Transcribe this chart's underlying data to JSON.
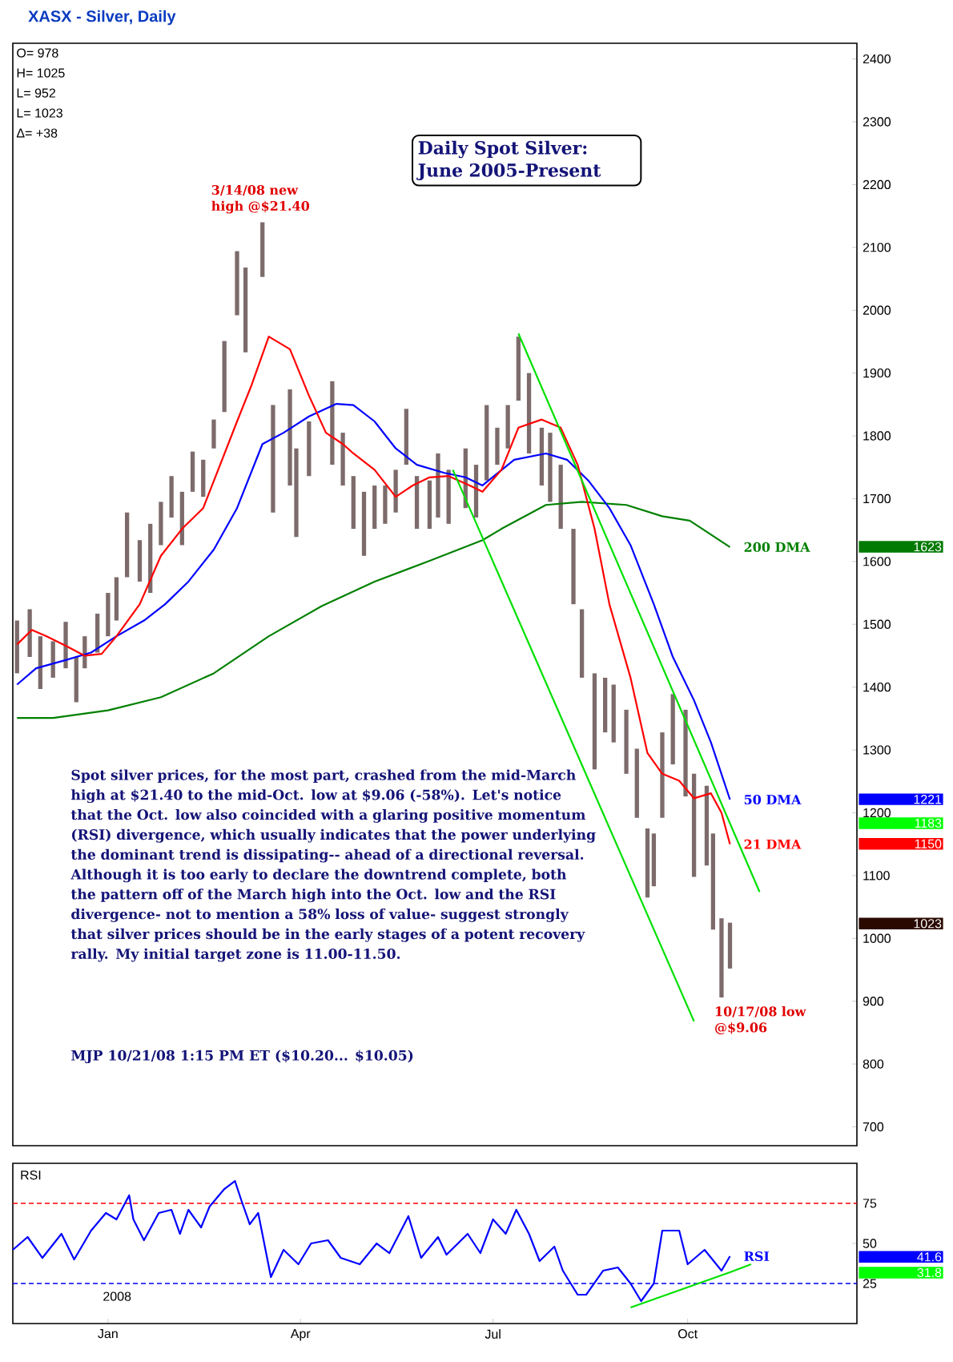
{
  "chart_data": [
    {
      "type": "bar",
      "title": "XASX - Silver, Daily",
      "subtitle": "Daily Spot Silver: June 2005-Present",
      "xlim": [
        "2007-11-17",
        "2008-12-20"
      ],
      "ylim": [
        670,
        2425
      ],
      "tick_labels": "y",
      "yticks": [
        700,
        800,
        900,
        1000,
        1100,
        1200,
        1300,
        1400,
        1500,
        1600,
        1700,
        1800,
        1900,
        2000,
        2100,
        2200,
        2300,
        2400
      ],
      "annotations": [
        "O=   978",
        "H=  1025",
        "L=   952",
        "L=  1023",
        "Δ=   +38",
        "Spot silver prices, for the most part, crashed from the mid-March high at $21.40 to the mid-Oct. low at $9.06 (-58%). Let's notice that the Oct. low also coincided with a glaring positive momentum (RSI) divergence, which usually indicates that the power underlying the dominant trend is dissipating-- ahead of a directional reversal. Although it is too early to declare the downtrend complete, both the pattern off of the March high into the Oct. low and the RSI divergence- not to mention a 58% loss of value- suggest strongly that silver prices should be in the early stages of a potent recovery rally. My initial target zone is 11.00-11.50.",
        "MJP  10/21/08 1:15 PM ET ($10.20... $10.05)",
        {
          "text": "3/14/08 new high @$21.40",
          "x": "2008-03-14",
          "y": 2140
        },
        {
          "text": "10/17/08 low @$9.06",
          "x": "2008-10-17",
          "y": 906
        },
        "1623",
        "1221",
        "1183",
        "1150",
        "1023"
      ],
      "series": [
        {
          "type": "bar",
          "color": "#7d6b6b",
          "x": [
            "2007-11-19",
            "2007-11-25",
            "2007-11-30",
            "2007-12-06",
            "2007-12-12",
            "2007-12-17",
            "2007-12-21",
            "2007-12-27",
            "2008-01-01",
            "2008-01-05",
            "2008-01-10",
            "2008-01-16",
            "2008-01-21",
            "2008-01-26",
            "2008-01-31",
            "2008-02-05",
            "2008-02-10",
            "2008-02-15",
            "2008-02-20",
            "2008-02-25",
            "2008-03-02",
            "2008-03-06",
            "2008-03-14",
            "2008-03-19",
            "2008-03-27",
            "2008-03-30",
            "2008-04-05",
            "2008-04-16",
            "2008-04-21",
            "2008-04-26",
            "2008-05-01",
            "2008-05-06",
            "2008-05-11",
            "2008-05-16",
            "2008-05-21",
            "2008-05-26",
            "2008-06-01",
            "2008-06-05",
            "2008-06-10",
            "2008-06-18",
            "2008-06-23",
            "2008-06-28",
            "2008-07-03",
            "2008-07-08",
            "2008-07-13",
            "2008-07-18",
            "2008-07-24",
            "2008-07-28",
            "2008-08-02",
            "2008-08-08",
            "2008-08-12",
            "2008-08-18",
            "2008-08-23",
            "2008-08-27",
            "2008-09-02",
            "2008-09-07",
            "2008-09-12",
            "2008-09-15",
            "2008-09-19",
            "2008-09-24",
            "2008-09-30",
            "2008-10-04",
            "2008-10-10",
            "2008-10-13",
            "2008-10-17",
            "2008-10-21"
          ],
          "base": [
            1422,
            1448,
            1397,
            1415,
            1430,
            1376,
            1430,
            1455,
            1481,
            1506,
            1575,
            1568,
            1550,
            1626,
            1670,
            1626,
            1711,
            1703,
            1780,
            1838,
            1992,
            1933,
            2053,
            1678,
            1721,
            1639,
            1736,
            1754,
            1721,
            1652,
            1609,
            1652,
            1660,
            1678,
            1754,
            1652,
            1652,
            1670,
            1660,
            1685,
            1670,
            1729,
            1754,
            1780,
            1856,
            1772,
            1721,
            1695,
            1652,
            1532,
            1415,
            1269,
            1328,
            1312,
            1262,
            1192,
            1065,
            1083,
            1192,
            1277,
            1226,
            1098,
            1116,
            1014,
            906,
            952
          ],
          "values": [
            84,
            76,
            84,
            58,
            74,
            72,
            51,
            62,
            69,
            69,
            103,
            66,
            110,
            69,
            66,
            85,
            64,
            59,
            46,
            113,
            102,
            135,
            87,
            171,
            153,
            141,
            87,
            133,
            84,
            84,
            102,
            69,
            61,
            68,
            89,
            84,
            77,
            102,
            86,
            95,
            84,
            120,
            59,
            69,
            102,
            128,
            92,
            110,
            102,
            120,
            109,
            153,
            87,
            92,
            102,
            110,
            110,
            84,
            136,
            112,
            138,
            164,
            127,
            153,
            126,
            73
          ]
        },
        {
          "type": "line",
          "name": "200 DMA",
          "color": "#008000",
          "x": [
            "2007-11-19",
            "2007-12-06",
            "2008-01-01",
            "2008-01-26",
            "2008-02-20",
            "2008-03-17",
            "2008-04-11",
            "2008-05-06",
            "2008-06-01",
            "2008-06-26",
            "2008-07-05",
            "2008-07-26",
            "2008-08-12",
            "2008-09-02",
            "2008-09-19",
            "2008-10-02",
            "2008-10-21"
          ],
          "values": [
            1351,
            1351,
            1363,
            1384,
            1422,
            1481,
            1529,
            1568,
            1601,
            1634,
            1652,
            1690,
            1695,
            1690,
            1672,
            1665,
            1623
          ]
        },
        {
          "type": "line",
          "name": "50 DMA",
          "color": "#0000ff",
          "x": [
            "2007-11-19",
            "2007-11-28",
            "2007-12-12",
            "2007-12-24",
            "2008-01-05",
            "2008-01-18",
            "2008-01-28",
            "2008-02-08",
            "2008-02-20",
            "2008-03-02",
            "2008-03-14",
            "2008-03-24",
            "2008-04-05",
            "2008-04-18",
            "2008-04-26",
            "2008-05-06",
            "2008-05-16",
            "2008-05-26",
            "2008-06-08",
            "2008-06-18",
            "2008-06-26",
            "2008-07-11",
            "2008-07-26",
            "2008-08-05",
            "2008-08-15",
            "2008-08-25",
            "2008-09-04",
            "2008-09-15",
            "2008-09-24",
            "2008-10-04",
            "2008-10-12",
            "2008-10-21"
          ],
          "values": [
            1404,
            1430,
            1443,
            1455,
            1481,
            1506,
            1532,
            1568,
            1619,
            1685,
            1787,
            1805,
            1831,
            1851,
            1849,
            1823,
            1780,
            1754,
            1741,
            1734,
            1721,
            1762,
            1772,
            1762,
            1729,
            1685,
            1626,
            1532,
            1448,
            1379,
            1312,
            1221
          ]
        },
        {
          "type": "line",
          "name": "21 DMA",
          "color": "#ff0000",
          "x": [
            "2007-11-19",
            "2007-11-26",
            "2007-12-03",
            "2007-12-12",
            "2007-12-21",
            "2007-12-29",
            "2008-01-05",
            "2008-01-16",
            "2008-01-26",
            "2008-02-05",
            "2008-02-15",
            "2008-02-23",
            "2008-03-02",
            "2008-03-09",
            "2008-03-17",
            "2008-03-27",
            "2008-04-05",
            "2008-04-13",
            "2008-04-21",
            "2008-04-26",
            "2008-05-06",
            "2008-05-16",
            "2008-05-24",
            "2008-06-01",
            "2008-06-10",
            "2008-06-20",
            "2008-06-26",
            "2008-07-05",
            "2008-07-13",
            "2008-07-24",
            "2008-08-02",
            "2008-08-10",
            "2008-08-18",
            "2008-08-25",
            "2008-09-04",
            "2008-09-12",
            "2008-09-19",
            "2008-09-27",
            "2008-10-04",
            "2008-10-12",
            "2008-10-17",
            "2008-10-21"
          ],
          "values": [
            1468,
            1491,
            1481,
            1466,
            1450,
            1453,
            1481,
            1532,
            1609,
            1652,
            1685,
            1754,
            1823,
            1882,
            1958,
            1938,
            1864,
            1805,
            1787,
            1772,
            1746,
            1703,
            1721,
            1734,
            1736,
            1721,
            1711,
            1746,
            1813,
            1826,
            1813,
            1754,
            1652,
            1532,
            1415,
            1295,
            1262,
            1251,
            1223,
            1231,
            1200,
            1150
          ]
        },
        {
          "type": "line",
          "color": "#00e000",
          "x": [
            "2008-07-13",
            "2008-10-21",
            "2008-11-04"
          ],
          "values": [
            1963,
            1183,
            1074
          ]
        },
        {
          "type": "line",
          "color": "#00e000",
          "x": [
            "2008-06-12",
            "2008-10-04"
          ],
          "values": [
            1746,
            868
          ]
        }
      ]
    },
    {
      "type": "line",
      "title": "RSI",
      "xlim": [
        "2007-11-17",
        "2008-12-20"
      ],
      "ylim": [
        0,
        100
      ],
      "yticks": [
        25,
        50,
        75
      ],
      "xticks": [
        {
          "value": "2008-01-01",
          "label": "Jan"
        },
        {
          "value": "2008-04-01",
          "label": "Apr"
        },
        {
          "value": "2008-07-01",
          "label": "Jul"
        },
        {
          "value": "2008-10-01",
          "label": "Oct"
        }
      ],
      "annotations": [
        "2008",
        "41.6",
        "31.8"
      ],
      "ref_lines": [
        {
          "axis": "y",
          "value": 75,
          "color": "#ff0000",
          "line_style": "dashed"
        },
        {
          "axis": "y",
          "value": 25,
          "color": "#0000ff",
          "line_style": "dashed"
        }
      ],
      "series": [
        {
          "name": "RSI",
          "color": "#0000ff",
          "x": [
            "2007-11-17",
            "2007-11-24",
            "2007-12-01",
            "2007-12-10",
            "2007-12-16",
            "2007-12-24",
            "2007-12-31",
            "2008-01-05",
            "2008-01-11",
            "2008-01-13",
            "2008-01-18",
            "2008-01-25",
            "2008-01-31",
            "2008-02-04",
            "2008-02-08",
            "2008-02-14",
            "2008-02-18",
            "2008-02-25",
            "2008-03-01",
            "2008-03-04",
            "2008-03-08",
            "2008-03-12",
            "2008-03-18",
            "2008-03-24",
            "2008-03-31",
            "2008-04-06",
            "2008-04-14",
            "2008-04-20",
            "2008-04-29",
            "2008-05-07",
            "2008-05-13",
            "2008-05-22",
            "2008-05-28",
            "2008-06-05",
            "2008-06-09",
            "2008-06-19",
            "2008-06-25",
            "2008-07-01",
            "2008-07-07",
            "2008-07-12",
            "2008-07-18",
            "2008-07-23",
            "2008-07-30",
            "2008-08-03",
            "2008-08-10",
            "2008-08-14",
            "2008-08-22",
            "2008-08-29",
            "2008-09-04",
            "2008-09-09",
            "2008-09-15",
            "2008-09-19",
            "2008-09-27",
            "2008-10-01",
            "2008-10-09",
            "2008-10-17",
            "2008-10-21"
          ],
          "values": [
            46,
            54,
            41,
            56,
            40,
            58,
            69,
            65,
            80,
            65,
            52,
            69,
            71,
            56,
            71,
            60,
            73,
            84,
            89,
            77,
            62,
            69,
            29,
            46,
            37,
            50,
            52,
            41,
            37,
            50,
            44,
            67,
            41,
            54,
            43,
            56,
            44,
            65,
            56,
            71,
            56,
            39,
            48,
            33,
            18,
            18,
            33,
            35,
            25,
            14,
            25,
            58,
            58,
            37,
            46,
            33,
            42
          ]
        },
        {
          "color": "#00e000",
          "x": [
            "2008-09-04",
            "2008-10-21",
            "2008-10-31"
          ],
          "values": [
            10,
            32,
            37
          ]
        }
      ]
    }
  ]
}
